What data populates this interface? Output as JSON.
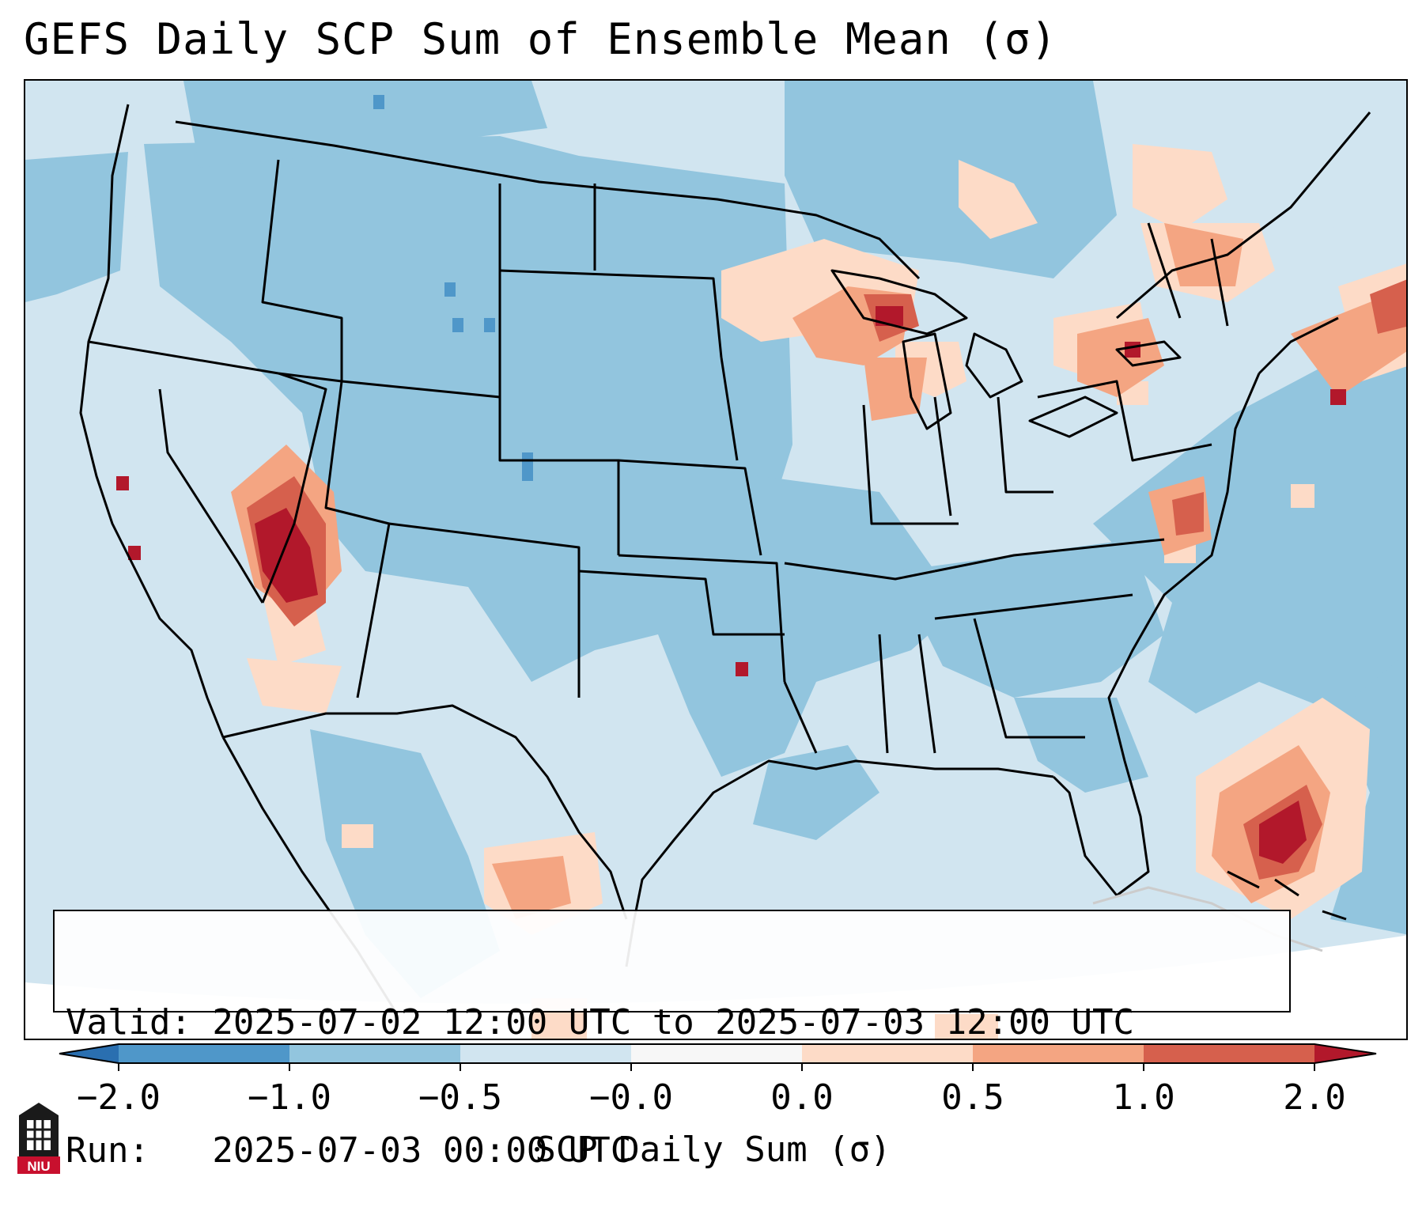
{
  "title": "GEFS Daily SCP Sum of Ensemble Mean (σ)",
  "info": {
    "valid_line": "Valid: 2025-07-02 12:00 UTC to 2025-07-03 12:00 UTC",
    "run_line": "Run:   2025-07-03 00:00 UTC"
  },
  "colorbar": {
    "label": "SCP Daily Sum (σ)",
    "ticks": [
      "−2.0",
      "−1.0",
      "−0.5",
      "−0.0",
      "0.0",
      "0.5",
      "1.0",
      "2.0"
    ],
    "colors": {
      "below_min": "#2a6fb0",
      "bin_neg2_neg1": "#4f97c9",
      "bin_neg1_neg05": "#92c5de",
      "bin_neg05_0": "#d1e5f0",
      "bin_0_05": "#fddbc7",
      "bin_05_1": "#f4a582",
      "bin_1_2": "#d6604d",
      "above_max": "#b2182b",
      "near_zero": "#f7f7f7"
    }
  },
  "logo": {
    "text": "NIU"
  }
}
